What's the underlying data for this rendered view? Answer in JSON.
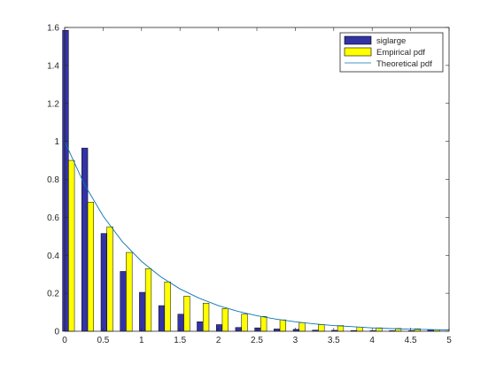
{
  "chart_data": {
    "type": "bar",
    "title": "",
    "xlabel": "",
    "ylabel": "",
    "xlim": [
      0,
      5
    ],
    "ylim": [
      0,
      1.6
    ],
    "x_ticks": [
      "0",
      "0.5",
      "1",
      "1.5",
      "2",
      "2.5",
      "3",
      "3.5",
      "4",
      "4.5",
      "5"
    ],
    "y_ticks": [
      "0",
      "0.2",
      "0.4",
      "0.6",
      "0.8",
      "1",
      "1.2",
      "1.4",
      "1.6"
    ],
    "grid": false,
    "legend_placement": "top-right",
    "bin_centers": [
      0.05,
      0.3,
      0.55,
      0.8,
      1.05,
      1.3,
      1.55,
      1.8,
      2.05,
      2.3,
      2.55,
      2.8,
      3.05,
      3.3,
      3.55,
      3.8,
      4.05,
      4.3,
      4.55,
      4.8
    ],
    "series": [
      {
        "name": "siglarge",
        "kind": "bar",
        "color": "#3333a6",
        "values": [
          1.585,
          0.965,
          0.515,
          0.315,
          0.205,
          0.135,
          0.09,
          0.05,
          0.035,
          0.02,
          0.018,
          0.012,
          0.01,
          0.006,
          0.005,
          0.004,
          0.003,
          0.003,
          0.003,
          0.008
        ]
      },
      {
        "name": "Empirical pdf",
        "kind": "bar",
        "color": "#ffff00",
        "values": [
          0.9,
          0.68,
          0.55,
          0.415,
          0.33,
          0.26,
          0.185,
          0.148,
          0.12,
          0.09,
          0.078,
          0.06,
          0.045,
          0.035,
          0.03,
          0.022,
          0.018,
          0.015,
          0.013,
          0.008
        ]
      },
      {
        "name": "Theoretical pdf",
        "kind": "line",
        "color": "#0d73b3",
        "x": [
          0,
          0.25,
          0.5,
          0.75,
          1,
          1.25,
          1.5,
          1.75,
          2,
          2.25,
          2.5,
          2.75,
          3,
          3.25,
          3.5,
          3.75,
          4,
          4.25,
          4.5,
          4.75,
          5
        ],
        "values": [
          1.0,
          0.779,
          0.607,
          0.472,
          0.368,
          0.287,
          0.223,
          0.174,
          0.135,
          0.105,
          0.082,
          0.064,
          0.05,
          0.039,
          0.03,
          0.024,
          0.018,
          0.014,
          0.011,
          0.009,
          0.007
        ]
      }
    ]
  }
}
